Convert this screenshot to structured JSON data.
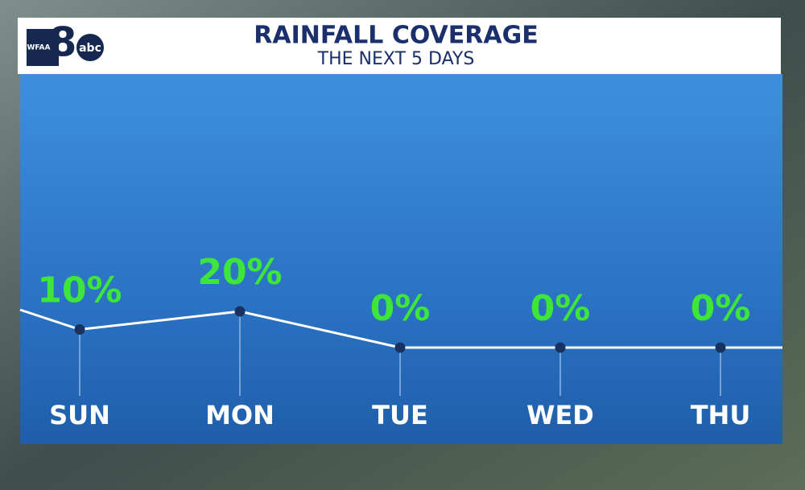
{
  "logo": {
    "station": "WFAA",
    "channel": "8",
    "network": "abc"
  },
  "chart_data": {
    "type": "line",
    "title": "RAINFALL COVERAGE",
    "subtitle": "THE NEXT 5 DAYS",
    "categories": [
      "SUN",
      "MON",
      "TUE",
      "WED",
      "THU"
    ],
    "values": [
      10,
      20,
      0,
      0,
      0
    ],
    "value_labels": [
      "10%",
      "20%",
      "0%",
      "0%",
      "0%"
    ],
    "color": "#ffffff",
    "label_color": "#3fe63a",
    "marker_color": "#17325f"
  }
}
